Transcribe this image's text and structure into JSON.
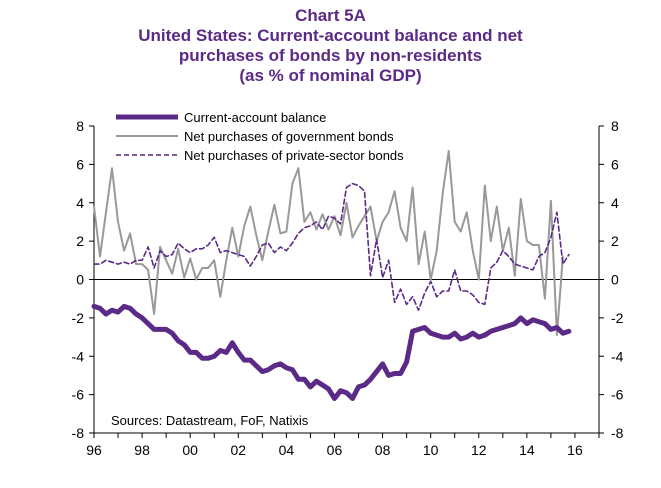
{
  "chart_data": {
    "type": "line",
    "title": [
      "Chart 5A",
      "United States: Current-account balance and net",
      "purchases of bonds by non-residents",
      "(as % of nominal GDP)"
    ],
    "source": "Sources: Datastream, FoF, Natixis",
    "x_range": [
      1996,
      2017
    ],
    "x_ticks": [
      1996,
      1998,
      2000,
      2002,
      2004,
      2006,
      2008,
      2010,
      2012,
      2014,
      2016
    ],
    "x_tick_labels": [
      "96",
      "98",
      "00",
      "02",
      "04",
      "06",
      "08",
      "10",
      "12",
      "14",
      "16"
    ],
    "ylim": [
      -8,
      8
    ],
    "y_ticks": [
      8,
      6,
      4,
      2,
      0,
      -2,
      -4,
      -6,
      -8
    ],
    "y_tick_labels": [
      "8",
      "6",
      "4",
      "2",
      "0",
      "-2",
      "-4",
      "-6",
      "-8"
    ],
    "legend_position": "top-left",
    "series": [
      {
        "name": "Current-account balance",
        "color": "#5b2a86",
        "style": "solid-thick",
        "points": [
          [
            1996.0,
            -1.4
          ],
          [
            1996.25,
            -1.5
          ],
          [
            1996.5,
            -1.8
          ],
          [
            1996.75,
            -1.6
          ],
          [
            1997.0,
            -1.7
          ],
          [
            1997.25,
            -1.4
          ],
          [
            1997.5,
            -1.5
          ],
          [
            1997.75,
            -1.8
          ],
          [
            1998.0,
            -2.0
          ],
          [
            1998.25,
            -2.3
          ],
          [
            1998.5,
            -2.6
          ],
          [
            1998.75,
            -2.6
          ],
          [
            1999.0,
            -2.6
          ],
          [
            1999.25,
            -2.8
          ],
          [
            1999.5,
            -3.2
          ],
          [
            1999.75,
            -3.4
          ],
          [
            2000.0,
            -3.8
          ],
          [
            2000.25,
            -3.8
          ],
          [
            2000.5,
            -4.1
          ],
          [
            2000.75,
            -4.1
          ],
          [
            2001.0,
            -4.0
          ],
          [
            2001.25,
            -3.7
          ],
          [
            2001.5,
            -3.8
          ],
          [
            2001.75,
            -3.3
          ],
          [
            2002.0,
            -3.8
          ],
          [
            2002.25,
            -4.2
          ],
          [
            2002.5,
            -4.2
          ],
          [
            2002.75,
            -4.5
          ],
          [
            2003.0,
            -4.8
          ],
          [
            2003.25,
            -4.7
          ],
          [
            2003.5,
            -4.5
          ],
          [
            2003.75,
            -4.4
          ],
          [
            2004.0,
            -4.6
          ],
          [
            2004.25,
            -4.7
          ],
          [
            2004.5,
            -5.2
          ],
          [
            2004.75,
            -5.2
          ],
          [
            2005.0,
            -5.6
          ],
          [
            2005.25,
            -5.3
          ],
          [
            2005.5,
            -5.5
          ],
          [
            2005.75,
            -5.7
          ],
          [
            2006.0,
            -6.2
          ],
          [
            2006.25,
            -5.8
          ],
          [
            2006.5,
            -5.9
          ],
          [
            2006.75,
            -6.2
          ],
          [
            2007.0,
            -5.6
          ],
          [
            2007.25,
            -5.5
          ],
          [
            2007.5,
            -5.2
          ],
          [
            2007.75,
            -4.8
          ],
          [
            2008.0,
            -4.4
          ],
          [
            2008.25,
            -5.0
          ],
          [
            2008.5,
            -4.9
          ],
          [
            2008.75,
            -4.9
          ],
          [
            2009.0,
            -4.3
          ],
          [
            2009.25,
            -2.7
          ],
          [
            2009.5,
            -2.6
          ],
          [
            2009.75,
            -2.5
          ],
          [
            2010.0,
            -2.8
          ],
          [
            2010.25,
            -2.9
          ],
          [
            2010.5,
            -3.0
          ],
          [
            2010.75,
            -3.0
          ],
          [
            2011.0,
            -2.8
          ],
          [
            2011.25,
            -3.1
          ],
          [
            2011.5,
            -3.0
          ],
          [
            2011.75,
            -2.8
          ],
          [
            2012.0,
            -3.0
          ],
          [
            2012.25,
            -2.9
          ],
          [
            2012.5,
            -2.7
          ],
          [
            2012.75,
            -2.6
          ],
          [
            2013.0,
            -2.5
          ],
          [
            2013.25,
            -2.4
          ],
          [
            2013.5,
            -2.3
          ],
          [
            2013.75,
            -2.0
          ],
          [
            2014.0,
            -2.3
          ],
          [
            2014.25,
            -2.1
          ],
          [
            2014.5,
            -2.2
          ],
          [
            2014.75,
            -2.3
          ],
          [
            2015.0,
            -2.6
          ],
          [
            2015.25,
            -2.5
          ],
          [
            2015.5,
            -2.8
          ],
          [
            2015.75,
            -2.7
          ]
        ]
      },
      {
        "name": "Net purchases of government bonds",
        "color": "#999999",
        "style": "solid",
        "points": [
          [
            1996.0,
            3.8
          ],
          [
            1996.25,
            1.2
          ],
          [
            1996.5,
            3.5
          ],
          [
            1996.75,
            5.8
          ],
          [
            1997.0,
            3.0
          ],
          [
            1997.25,
            1.5
          ],
          [
            1997.5,
            2.4
          ],
          [
            1997.75,
            0.8
          ],
          [
            1998.0,
            0.8
          ],
          [
            1998.25,
            0.5
          ],
          [
            1998.5,
            -1.8
          ],
          [
            1998.75,
            1.7
          ],
          [
            1999.0,
            1.0
          ],
          [
            1999.25,
            0.3
          ],
          [
            1999.5,
            1.6
          ],
          [
            1999.75,
            0.1
          ],
          [
            2000.0,
            1.1
          ],
          [
            2000.25,
            0.0
          ],
          [
            2000.5,
            0.6
          ],
          [
            2000.75,
            0.6
          ],
          [
            2001.0,
            1.0
          ],
          [
            2001.25,
            -0.9
          ],
          [
            2001.5,
            1.0
          ],
          [
            2001.75,
            2.7
          ],
          [
            2002.0,
            1.2
          ],
          [
            2002.25,
            2.8
          ],
          [
            2002.5,
            3.8
          ],
          [
            2002.75,
            2.3
          ],
          [
            2003.0,
            1.0
          ],
          [
            2003.25,
            2.5
          ],
          [
            2003.5,
            3.9
          ],
          [
            2003.75,
            2.4
          ],
          [
            2004.0,
            2.5
          ],
          [
            2004.25,
            5.0
          ],
          [
            2004.5,
            5.8
          ],
          [
            2004.75,
            3.0
          ],
          [
            2005.0,
            3.5
          ],
          [
            2005.25,
            2.6
          ],
          [
            2005.5,
            3.4
          ],
          [
            2005.75,
            2.6
          ],
          [
            2006.0,
            3.3
          ],
          [
            2006.25,
            2.3
          ],
          [
            2006.5,
            4.0
          ],
          [
            2006.75,
            2.2
          ],
          [
            2007.0,
            2.8
          ],
          [
            2007.25,
            3.3
          ],
          [
            2007.5,
            3.8
          ],
          [
            2007.75,
            2.0
          ],
          [
            2008.0,
            3.0
          ],
          [
            2008.25,
            3.5
          ],
          [
            2008.5,
            4.6
          ],
          [
            2008.75,
            2.7
          ],
          [
            2009.0,
            2.0
          ],
          [
            2009.25,
            4.8
          ],
          [
            2009.5,
            0.8
          ],
          [
            2009.75,
            2.5
          ],
          [
            2010.0,
            0.0
          ],
          [
            2010.25,
            1.5
          ],
          [
            2010.5,
            4.5
          ],
          [
            2010.75,
            6.7
          ],
          [
            2011.0,
            3.0
          ],
          [
            2011.25,
            2.5
          ],
          [
            2011.5,
            3.5
          ],
          [
            2011.75,
            1.5
          ],
          [
            2012.0,
            0.0
          ],
          [
            2012.25,
            4.9
          ],
          [
            2012.5,
            2.0
          ],
          [
            2012.75,
            3.8
          ],
          [
            2013.0,
            1.5
          ],
          [
            2013.25,
            2.7
          ],
          [
            2013.5,
            0.2
          ],
          [
            2013.75,
            4.2
          ],
          [
            2014.0,
            2.0
          ],
          [
            2014.25,
            1.8
          ],
          [
            2014.5,
            1.8
          ],
          [
            2014.75,
            -1.0
          ],
          [
            2015.0,
            4.1
          ],
          [
            2015.25,
            -2.9
          ],
          [
            2015.5,
            1.2
          ]
        ]
      },
      {
        "name": "Net purchases of private-sector bonds",
        "color": "#5b2a86",
        "style": "dashed",
        "points": [
          [
            1996.0,
            0.8
          ],
          [
            1996.25,
            0.8
          ],
          [
            1996.5,
            1.0
          ],
          [
            1996.75,
            0.9
          ],
          [
            1997.0,
            0.8
          ],
          [
            1997.25,
            0.9
          ],
          [
            1997.5,
            0.8
          ],
          [
            1997.75,
            1.0
          ],
          [
            1998.0,
            1.0
          ],
          [
            1998.25,
            1.7
          ],
          [
            1998.5,
            0.6
          ],
          [
            1998.75,
            1.5
          ],
          [
            1999.0,
            1.2
          ],
          [
            1999.25,
            1.3
          ],
          [
            1999.5,
            1.9
          ],
          [
            1999.75,
            1.6
          ],
          [
            2000.0,
            1.4
          ],
          [
            2000.25,
            1.6
          ],
          [
            2000.5,
            1.6
          ],
          [
            2000.75,
            1.8
          ],
          [
            2001.0,
            2.2
          ],
          [
            2001.25,
            1.4
          ],
          [
            2001.5,
            1.5
          ],
          [
            2001.75,
            1.4
          ],
          [
            2002.0,
            1.3
          ],
          [
            2002.25,
            1.2
          ],
          [
            2002.5,
            0.7
          ],
          [
            2002.75,
            1.2
          ],
          [
            2003.0,
            1.8
          ],
          [
            2003.25,
            1.9
          ],
          [
            2003.5,
            1.4
          ],
          [
            2003.75,
            1.7
          ],
          [
            2004.0,
            1.5
          ],
          [
            2004.25,
            1.9
          ],
          [
            2004.5,
            2.4
          ],
          [
            2004.75,
            2.7
          ],
          [
            2005.0,
            2.8
          ],
          [
            2005.25,
            3.0
          ],
          [
            2005.5,
            2.6
          ],
          [
            2005.75,
            3.3
          ],
          [
            2006.0,
            3.2
          ],
          [
            2006.25,
            2.9
          ],
          [
            2006.5,
            4.8
          ],
          [
            2006.75,
            5.0
          ],
          [
            2007.0,
            4.9
          ],
          [
            2007.25,
            4.6
          ],
          [
            2007.5,
            0.2
          ],
          [
            2007.75,
            2.1
          ],
          [
            2008.0,
            0.1
          ],
          [
            2008.25,
            1.0
          ],
          [
            2008.5,
            -1.2
          ],
          [
            2008.75,
            -0.5
          ],
          [
            2009.0,
            -1.3
          ],
          [
            2009.25,
            -0.9
          ],
          [
            2009.5,
            -1.6
          ],
          [
            2009.75,
            -0.7
          ],
          [
            2010.0,
            -0.1
          ],
          [
            2010.25,
            -0.9
          ],
          [
            2010.5,
            -0.6
          ],
          [
            2010.75,
            -0.6
          ],
          [
            2011.0,
            0.5
          ],
          [
            2011.25,
            -0.6
          ],
          [
            2011.5,
            -0.6
          ],
          [
            2011.75,
            -0.8
          ],
          [
            2012.0,
            -1.2
          ],
          [
            2012.25,
            -1.3
          ],
          [
            2012.5,
            0.6
          ],
          [
            2012.75,
            0.9
          ],
          [
            2013.0,
            1.5
          ],
          [
            2013.25,
            1.2
          ],
          [
            2013.5,
            0.8
          ],
          [
            2013.75,
            0.7
          ],
          [
            2014.0,
            0.6
          ],
          [
            2014.25,
            0.5
          ],
          [
            2014.5,
            1.2
          ],
          [
            2014.75,
            1.4
          ],
          [
            2015.0,
            2.2
          ],
          [
            2015.25,
            3.5
          ],
          [
            2015.5,
            0.8
          ],
          [
            2015.75,
            1.3
          ]
        ]
      }
    ]
  },
  "colors": {
    "accent": "#5b2a86",
    "gov": "#999999"
  }
}
